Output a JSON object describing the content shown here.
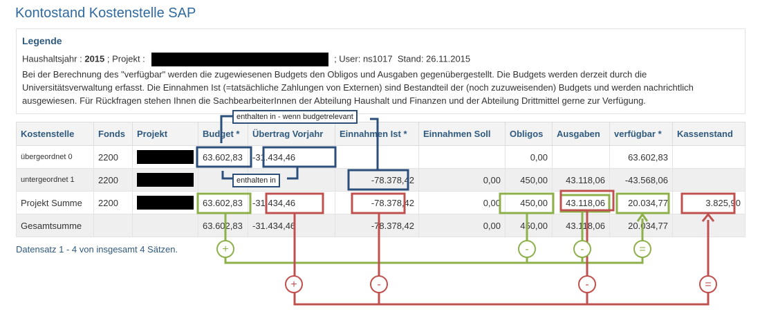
{
  "page_title": "Kontostand Kostenstelle SAP",
  "legend": {
    "title": "Legende",
    "fiscal_year_label": "Haushaltsjahr :",
    "fiscal_year_value": "2015",
    "project_label": "; Projekt :",
    "user_text": "; User: ns1017",
    "date_text": "Stand: 26.11.2015",
    "description": "Bei der Berechnung des \"verfügbar\" werden die zugewiesenen Budgets den Obligos und Ausgaben gegenübergestellt. Die Budgets werden derzeit durch die Universitätsverwaltung erfasst. Die Einnahmen Ist (=tatsächliche Zahlungen von Externen) sind Bestandteil der (noch zuzuweisenden) Budgets und werden nachrichtlich ausgewiesen. Für Rückfragen stehen Ihnen die SachbearbeiterInnen der Abteilung Haushalt und Finanzen und der Abteilung Drittmittel gerne zur Verfügung."
  },
  "table": {
    "headers": [
      "Kostenstelle",
      "Fonds",
      "Projekt",
      "Budget *",
      "Übertrag Vorjahr",
      "Einnahmen Ist *",
      "Einnahmen Soll",
      "Obligos",
      "Ausgaben",
      "verfügbar *",
      "Kassenstand"
    ],
    "rows": [
      {
        "kostenstelle": "übergeordnet 0",
        "fonds": "2200",
        "budget": "63.602,83",
        "uebertrag": "-31.434,46",
        "einnahmen_ist": "",
        "einnahmen_soll": "",
        "obligos": "0,00",
        "ausgaben": "",
        "verfuegbar": "63.602,83",
        "kassenstand": ""
      },
      {
        "kostenstelle": "untergeordnet 1",
        "fonds": "2200",
        "budget": "",
        "uebertrag": "",
        "einnahmen_ist": "-78.378,42",
        "einnahmen_soll": "0,00",
        "obligos": "450,00",
        "ausgaben": "43.118,06",
        "verfuegbar": "-43.568,06",
        "kassenstand": ""
      },
      {
        "kostenstelle": "Projekt Summe",
        "fonds": "2200",
        "budget": "63.602,83",
        "uebertrag": "-31.434,46",
        "einnahmen_ist": "-78.378,42",
        "einnahmen_soll": "0,00",
        "obligos": "450,00",
        "ausgaben": "43.118,06",
        "verfuegbar": "20.034,77",
        "kassenstand": "3.825,90"
      },
      {
        "kostenstelle": "Gesamtsumme",
        "fonds": "",
        "budget": "63.602,83",
        "uebertrag": "-31.434,46",
        "einnahmen_ist": "-78.378,42",
        "einnahmen_soll": "0,00",
        "obligos": "450,00",
        "ausgaben": "43.118,06",
        "verfuegbar": "20.034,77",
        "kassenstand": ""
      }
    ]
  },
  "footer": "Datensatz 1 - 4 von insgesamt 4 Sätzen.",
  "annotations": {
    "note_budget": "enthalten in - wenn budgetrelevant",
    "note_enthalten": "enthalten in",
    "plus": "+",
    "minus": "-",
    "equals": "="
  },
  "colors": {
    "green": "#8db04a",
    "red": "#c0504d",
    "blue": "#2b4f7a",
    "title": "#2f6a9f"
  }
}
